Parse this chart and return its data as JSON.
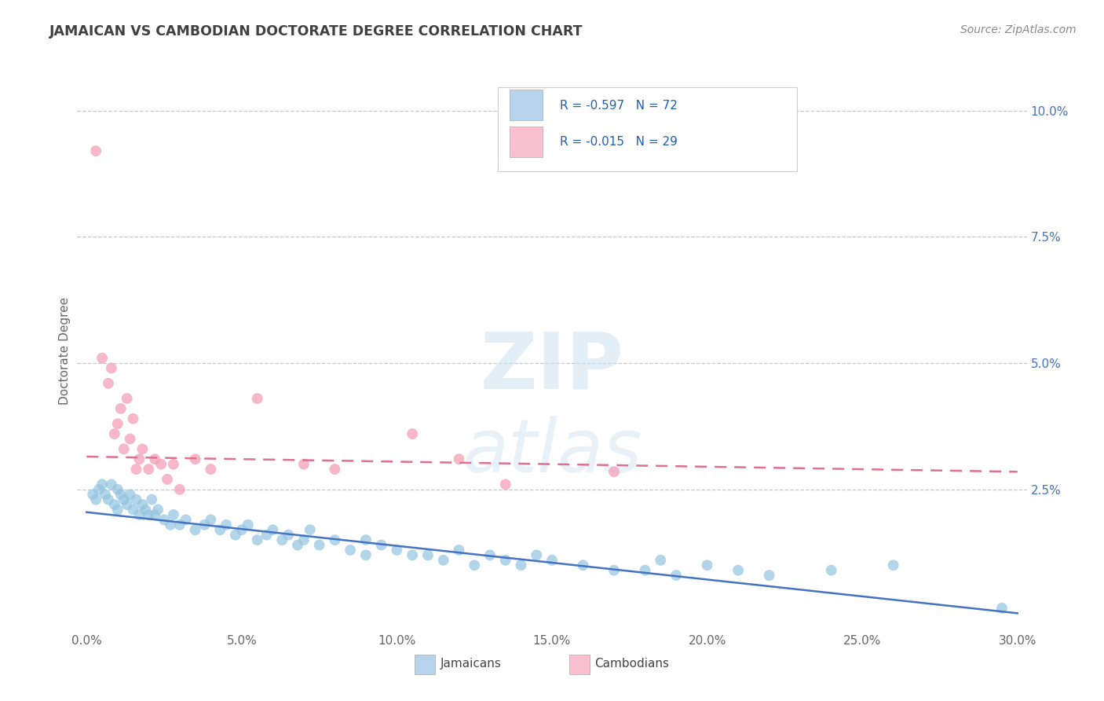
{
  "title": "JAMAICAN VS CAMBODIAN DOCTORATE DEGREE CORRELATION CHART",
  "source": "Source: ZipAtlas.com",
  "ylabel": "Doctorate Degree",
  "x_tick_labels": [
    "0.0%",
    "5.0%",
    "10.0%",
    "15.0%",
    "20.0%",
    "25.0%",
    "30.0%"
  ],
  "x_tick_values": [
    0.0,
    5.0,
    10.0,
    15.0,
    20.0,
    25.0,
    30.0
  ],
  "y_tick_labels": [
    "2.5%",
    "5.0%",
    "7.5%",
    "10.0%"
  ],
  "y_tick_values": [
    2.5,
    5.0,
    7.5,
    10.0
  ],
  "xlim": [
    -0.3,
    30.3
  ],
  "ylim": [
    -0.3,
    10.8
  ],
  "jamaicans_label": "Jamaicans",
  "cambodians_label": "Cambodians",
  "blue_scatter_color": "#93c4e0",
  "pink_scatter_color": "#f4a0b8",
  "blue_line_color": "#4472c4",
  "pink_line_color": "#e07090",
  "blue_legend_color": "#b8d4ec",
  "pink_legend_color": "#f8c0d0",
  "background_color": "#ffffff",
  "grid_color": "#c8c8c8",
  "title_color": "#404040",
  "R_jamaican": -0.597,
  "N_jamaican": 72,
  "R_cambodian": -0.015,
  "N_cambodian": 29,
  "jamaican_x": [
    0.2,
    0.3,
    0.4,
    0.5,
    0.6,
    0.7,
    0.8,
    0.9,
    1.0,
    1.0,
    1.1,
    1.2,
    1.3,
    1.4,
    1.5,
    1.6,
    1.7,
    1.8,
    1.9,
    2.0,
    2.1,
    2.2,
    2.3,
    2.5,
    2.7,
    2.8,
    3.0,
    3.2,
    3.5,
    3.8,
    4.0,
    4.3,
    4.5,
    4.8,
    5.0,
    5.2,
    5.5,
    5.8,
    6.0,
    6.3,
    6.5,
    6.8,
    7.0,
    7.2,
    7.5,
    8.0,
    8.5,
    9.0,
    9.0,
    9.5,
    10.0,
    10.5,
    11.0,
    11.5,
    12.0,
    12.5,
    13.0,
    13.5,
    14.0,
    14.5,
    15.0,
    16.0,
    17.0,
    18.0,
    18.5,
    19.0,
    20.0,
    21.0,
    22.0,
    24.0,
    26.0,
    29.5
  ],
  "jamaican_y": [
    2.4,
    2.3,
    2.5,
    2.6,
    2.4,
    2.3,
    2.6,
    2.2,
    2.1,
    2.5,
    2.4,
    2.3,
    2.2,
    2.4,
    2.1,
    2.3,
    2.0,
    2.2,
    2.1,
    2.0,
    2.3,
    2.0,
    2.1,
    1.9,
    1.8,
    2.0,
    1.8,
    1.9,
    1.7,
    1.8,
    1.9,
    1.7,
    1.8,
    1.6,
    1.7,
    1.8,
    1.5,
    1.6,
    1.7,
    1.5,
    1.6,
    1.4,
    1.5,
    1.7,
    1.4,
    1.5,
    1.3,
    1.5,
    1.2,
    1.4,
    1.3,
    1.2,
    1.2,
    1.1,
    1.3,
    1.0,
    1.2,
    1.1,
    1.0,
    1.2,
    1.1,
    1.0,
    0.9,
    0.9,
    1.1,
    0.8,
    1.0,
    0.9,
    0.8,
    0.9,
    1.0,
    0.15
  ],
  "cambodian_x": [
    0.3,
    0.5,
    0.7,
    0.8,
    0.9,
    1.0,
    1.1,
    1.2,
    1.3,
    1.4,
    1.5,
    1.6,
    1.7,
    1.8,
    2.0,
    2.2,
    2.4,
    2.6,
    2.8,
    3.0,
    3.5,
    4.0,
    5.5,
    7.0,
    8.0,
    10.5,
    12.0,
    13.5,
    17.0
  ],
  "cambodian_y": [
    9.2,
    5.1,
    4.6,
    4.9,
    3.6,
    3.8,
    4.1,
    3.3,
    4.3,
    3.5,
    3.9,
    2.9,
    3.1,
    3.3,
    2.9,
    3.1,
    3.0,
    2.7,
    3.0,
    2.5,
    3.1,
    2.9,
    4.3,
    3.0,
    2.9,
    3.6,
    3.1,
    2.6,
    2.85
  ],
  "trend_jamaican_start": 2.05,
  "trend_jamaican_end": 0.05,
  "trend_cambodian_start": 3.15,
  "trend_cambodian_end": 2.85
}
